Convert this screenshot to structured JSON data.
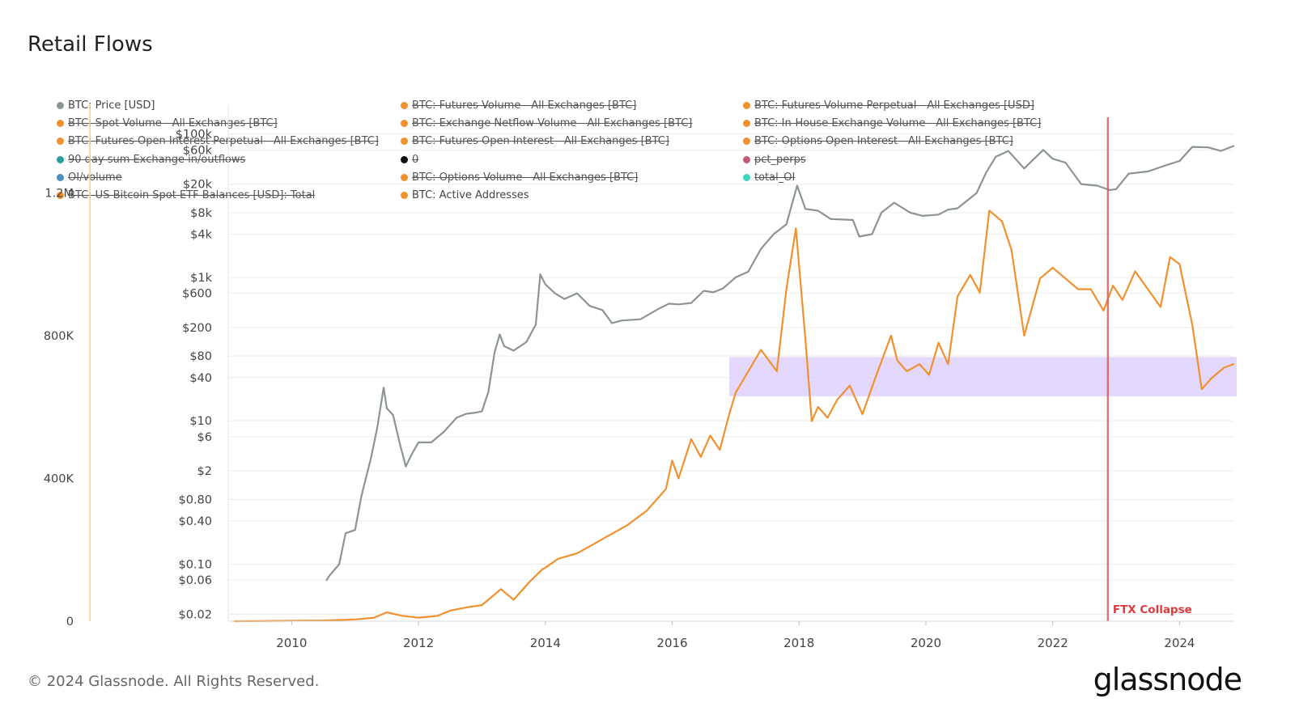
{
  "title": "Retail Flows",
  "footer": "© 2024 Glassnode. All Rights Reserved.",
  "brand": "glassnode",
  "legend": [
    {
      "label": "BTC: Price [USD]",
      "color": "#8c9494",
      "active": true
    },
    {
      "label": "BTC: Futures Volume - All Exchanges [BTC]",
      "color": "#f0912f",
      "active": false
    },
    {
      "label": "BTC: Futures Volume Perpetual - All Exchanges [USD]",
      "color": "#f0912f",
      "active": false
    },
    {
      "label": "BTC: Spot Volume - All Exchanges [BTC]",
      "color": "#f0912f",
      "active": false
    },
    {
      "label": "BTC: Exchange Netflow Volume - All Exchanges [BTC]",
      "color": "#f0912f",
      "active": false
    },
    {
      "label": "BTC: In-House Exchange Volume - All Exchanges [BTC]",
      "color": "#f0912f",
      "active": false
    },
    {
      "label": "BTC: Futures Open Interest Perpetual - All Exchanges [BTC]",
      "color": "#f0912f",
      "active": false
    },
    {
      "label": "BTC: Futures Open Interest - All Exchanges [BTC]",
      "color": "#f0912f",
      "active": false
    },
    {
      "label": "BTC: Options Open Interest - All Exchanges [BTC]",
      "color": "#f0912f",
      "active": false
    },
    {
      "label": "90 day sum Exchange in/outflows",
      "color": "#2a9d9d",
      "active": false
    },
    {
      "label": "0",
      "color": "#111111",
      "active": false
    },
    {
      "label": "pct_perps",
      "color": "#c45a78",
      "active": false
    },
    {
      "label": "OI/volume",
      "color": "#4a8fc0",
      "active": false
    },
    {
      "label": "BTC: Options Volume - All Exchanges [BTC]",
      "color": "#f0912f",
      "active": false
    },
    {
      "label": "total_OI",
      "color": "#3fd6c0",
      "active": false
    },
    {
      "label": "BTC: US Bitcoin Spot ETF Balances [USD]: Total",
      "color": "#f0912f",
      "active": false
    },
    {
      "label": "BTC: Active Addresses",
      "color": "#f0912f",
      "active": true
    }
  ],
  "chart_data": {
    "type": "line",
    "title": "Retail Flows",
    "x_ticks": [
      2010,
      2012,
      2014,
      2016,
      2018,
      2020,
      2022,
      2024
    ],
    "xlim": [
      2009.0,
      2024.85
    ],
    "left_axis": {
      "ticks": [
        {
          "label": "1.2M",
          "value": 1200000
        },
        {
          "label": "800K",
          "value": 800000
        },
        {
          "label": "400K",
          "value": 400000
        },
        {
          "label": "0",
          "value": 0
        }
      ],
      "ylim": [
        0,
        1400000
      ]
    },
    "price_axis": {
      "scale": "log",
      "ticks": [
        {
          "label": "$100k",
          "value": 100000
        },
        {
          "label": "$60k",
          "value": 60000
        },
        {
          "label": "$20k",
          "value": 20000
        },
        {
          "label": "$8k",
          "value": 8000
        },
        {
          "label": "$4k",
          "value": 4000
        },
        {
          "label": "$1k",
          "value": 1000
        },
        {
          "label": "$600",
          "value": 600
        },
        {
          "label": "$200",
          "value": 200
        },
        {
          "label": "$80",
          "value": 80
        },
        {
          "label": "$40",
          "value": 40
        },
        {
          "label": "$10",
          "value": 10
        },
        {
          "label": "$6",
          "value": 6
        },
        {
          "label": "$2",
          "value": 2
        },
        {
          "label": "$0.80",
          "value": 0.8
        },
        {
          "label": "$0.40",
          "value": 0.4
        },
        {
          "label": "$0.10",
          "value": 0.1
        },
        {
          "label": "$0.06",
          "value": 0.06
        },
        {
          "label": "$0.02",
          "value": 0.02
        }
      ],
      "ylim": [
        0.016,
        150000
      ]
    },
    "series": [
      {
        "name": "BTC: Price [USD]",
        "axis": "price",
        "color": "#8c9494",
        "x": [
          2010.55,
          2010.6,
          2010.75,
          2010.85,
          2011.0,
          2011.1,
          2011.25,
          2011.35,
          2011.45,
          2011.5,
          2011.6,
          2011.7,
          2011.8,
          2011.9,
          2012.0,
          2012.2,
          2012.4,
          2012.6,
          2012.75,
          2012.9,
          2013.0,
          2013.1,
          2013.2,
          2013.28,
          2013.35,
          2013.5,
          2013.7,
          2013.85,
          2013.92,
          2014.0,
          2014.15,
          2014.3,
          2014.5,
          2014.7,
          2014.9,
          2015.05,
          2015.2,
          2015.5,
          2015.8,
          2015.95,
          2016.1,
          2016.3,
          2016.5,
          2016.65,
          2016.8,
          2017.0,
          2017.2,
          2017.4,
          2017.6,
          2017.8,
          2017.97,
          2018.1,
          2018.3,
          2018.5,
          2018.7,
          2018.85,
          2018.95,
          2019.15,
          2019.3,
          2019.5,
          2019.75,
          2019.95,
          2020.2,
          2020.35,
          2020.5,
          2020.8,
          2020.95,
          2021.1,
          2021.3,
          2021.55,
          2021.85,
          2022.0,
          2022.2,
          2022.45,
          2022.7,
          2022.9,
          2023.0,
          2023.2,
          2023.5,
          2023.8,
          2024.0,
          2024.2,
          2024.45,
          2024.65,
          2024.85
        ],
        "values": [
          0.06,
          0.07,
          0.1,
          0.27,
          0.3,
          0.9,
          3.0,
          8.0,
          29.0,
          15.0,
          12.0,
          5.0,
          2.3,
          3.5,
          5.0,
          5.0,
          7.0,
          11.0,
          12.5,
          13.0,
          13.5,
          25.0,
          90.0,
          160.0,
          110.0,
          95.0,
          125.0,
          220.0,
          1100.0,
          800.0,
          600.0,
          500.0,
          600.0,
          400.0,
          350.0,
          230.0,
          250.0,
          260.0,
          370.0,
          430.0,
          420.0,
          440.0,
          650.0,
          620.0,
          700.0,
          1000.0,
          1200.0,
          2500.0,
          4000.0,
          5500.0,
          19000.0,
          9000.0,
          8500.0,
          6500.0,
          6400.0,
          6300.0,
          3700.0,
          4000.0,
          8000.0,
          11000.0,
          8000.0,
          7200.0,
          7500.0,
          8800.0,
          9200.0,
          15000.0,
          29000.0,
          48000.0,
          58000.0,
          33000.0,
          60000.0,
          45000.0,
          40000.0,
          20000.0,
          19000.0,
          16500.0,
          17000.0,
          28000.0,
          30000.0,
          37000.0,
          42000.0,
          66000.0,
          65000.0,
          58000.0,
          68000.0
        ]
      },
      {
        "name": "BTC: Active Addresses",
        "axis": "left",
        "color": "#f0912f",
        "x": [
          2009.1,
          2010.5,
          2011.0,
          2011.3,
          2011.5,
          2011.75,
          2012.0,
          2012.3,
          2012.5,
          2012.8,
          2013.0,
          2013.3,
          2013.5,
          2013.75,
          2013.95,
          2014.0,
          2014.2,
          2014.5,
          2014.8,
          2015.0,
          2015.3,
          2015.6,
          2015.9,
          2016.0,
          2016.1,
          2016.3,
          2016.45,
          2016.6,
          2016.75,
          2016.9,
          2017.0,
          2017.2,
          2017.4,
          2017.65,
          2017.8,
          2017.95,
          2018.1,
          2018.2,
          2018.3,
          2018.45,
          2018.6,
          2018.8,
          2019.0,
          2019.2,
          2019.45,
          2019.55,
          2019.7,
          2019.9,
          2020.05,
          2020.2,
          2020.35,
          2020.5,
          2020.7,
          2020.85,
          2021.0,
          2021.2,
          2021.35,
          2021.55,
          2021.8,
          2022.0,
          2022.2,
          2022.4,
          2022.6,
          2022.8,
          2022.95,
          2023.1,
          2023.3,
          2023.5,
          2023.7,
          2023.85,
          2024.0,
          2024.2,
          2024.35,
          2024.5,
          2024.7,
          2024.85
        ],
        "values": [
          0,
          2000,
          5000,
          10000,
          25000,
          15000,
          10000,
          15000,
          30000,
          40000,
          45000,
          90000,
          60000,
          110000,
          145000,
          150000,
          175000,
          190000,
          220000,
          240000,
          270000,
          310000,
          370000,
          450000,
          400000,
          510000,
          460000,
          520000,
          480000,
          580000,
          640000,
          700000,
          760000,
          700000,
          930000,
          1100000,
          790000,
          560000,
          600000,
          570000,
          620000,
          660000,
          580000,
          680000,
          800000,
          730000,
          700000,
          720000,
          690000,
          780000,
          720000,
          910000,
          970000,
          920000,
          1150000,
          1120000,
          1040000,
          800000,
          960000,
          990000,
          960000,
          930000,
          930000,
          870000,
          940000,
          900000,
          980000,
          930000,
          880000,
          1020000,
          1000000,
          830000,
          650000,
          680000,
          710000,
          720000
        ]
      }
    ],
    "shaded_region": {
      "x": [
        2016.9,
        2024.9
      ],
      "y": [
        630000,
        740000
      ],
      "color": "#d9c8ff"
    },
    "event_line": {
      "x": 2022.87,
      "label": "FTX Collapse",
      "color": "#e05a5a"
    },
    "grid": true,
    "legend_position": "top-left"
  }
}
